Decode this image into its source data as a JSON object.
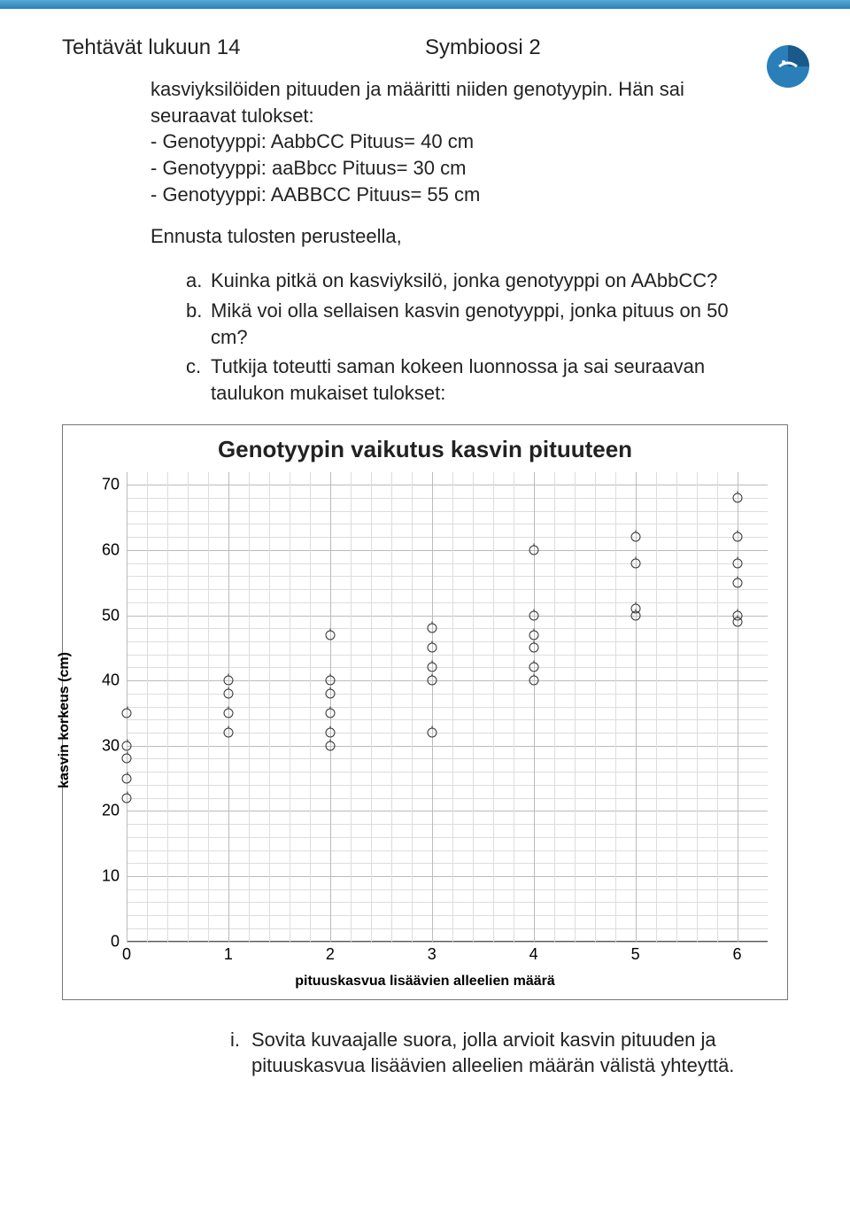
{
  "header": {
    "left": "Tehtävät lukuun 14",
    "right": "Symbioosi 2"
  },
  "intro1": "kasviyksilöiden pituuden ja määritti niiden genotyypin. Hän sai seuraavat tulokset:",
  "results": [
    "- Genotyyppi: AabbCC Pituus= 40 cm",
    "- Genotyyppi: aaBbcc  Pituus= 30 cm",
    "- Genotyyppi: AABBCC     Pituus= 55 cm"
  ],
  "predict": "Ennusta tulosten perusteella,",
  "questions": [
    {
      "letter": "a.",
      "text": "Kuinka pitkä on kasviyksilö, jonka genotyyppi on AAbbCC?"
    },
    {
      "letter": "b.",
      "text": "Mikä voi olla sellaisen kasvin genotyyppi, jonka pituus on 50 cm?"
    },
    {
      "letter": "c.",
      "text": "Tutkija toteutti saman kokeen luonnossa ja sai seuraavan taulukon mukaiset tulokset:"
    }
  ],
  "chart": {
    "title": "Genotyypin vaikutus kasvin pituuteen",
    "y_label": "kasvin korkeus (cm)",
    "x_label": "pituuskasvua lisäävien alleelien määrä",
    "y_ticks": [
      0,
      10,
      20,
      30,
      40,
      50,
      60,
      70
    ],
    "x_ticks": [
      0,
      1,
      2,
      3,
      4,
      5,
      6
    ],
    "y_max": 72,
    "x_max": 6.3,
    "minor_grid_color": "#dddddd",
    "major_grid_color": "#bbbbbb",
    "marker_color": "#333333",
    "points": [
      {
        "x": 0,
        "y": 35
      },
      {
        "x": 0,
        "y": 30
      },
      {
        "x": 0,
        "y": 28
      },
      {
        "x": 0,
        "y": 25
      },
      {
        "x": 0,
        "y": 22
      },
      {
        "x": 1,
        "y": 40
      },
      {
        "x": 1,
        "y": 38
      },
      {
        "x": 1,
        "y": 35
      },
      {
        "x": 1,
        "y": 32
      },
      {
        "x": 2,
        "y": 47
      },
      {
        "x": 2,
        "y": 40
      },
      {
        "x": 2,
        "y": 38
      },
      {
        "x": 2,
        "y": 35
      },
      {
        "x": 2,
        "y": 32
      },
      {
        "x": 2,
        "y": 30
      },
      {
        "x": 3,
        "y": 48
      },
      {
        "x": 3,
        "y": 45
      },
      {
        "x": 3,
        "y": 42
      },
      {
        "x": 3,
        "y": 40
      },
      {
        "x": 3,
        "y": 32
      },
      {
        "x": 4,
        "y": 60
      },
      {
        "x": 4,
        "y": 50
      },
      {
        "x": 4,
        "y": 47
      },
      {
        "x": 4,
        "y": 45
      },
      {
        "x": 4,
        "y": 42
      },
      {
        "x": 4,
        "y": 40
      },
      {
        "x": 5,
        "y": 62
      },
      {
        "x": 5,
        "y": 58
      },
      {
        "x": 5,
        "y": 51
      },
      {
        "x": 5,
        "y": 50
      },
      {
        "x": 6,
        "y": 68
      },
      {
        "x": 6,
        "y": 62
      },
      {
        "x": 6,
        "y": 58
      },
      {
        "x": 6,
        "y": 55
      },
      {
        "x": 6,
        "y": 50
      },
      {
        "x": 6,
        "y": 49
      }
    ]
  },
  "footer": {
    "letter": "i.",
    "text": "Sovita kuvaajalle suora, jolla arvioit kasvin pituuden ja pituuskasvua lisäävien alleelien määrän välistä yhteyttä."
  },
  "logo_colors": {
    "main": "#2a7fb8",
    "dark": "#1a5a8a"
  }
}
